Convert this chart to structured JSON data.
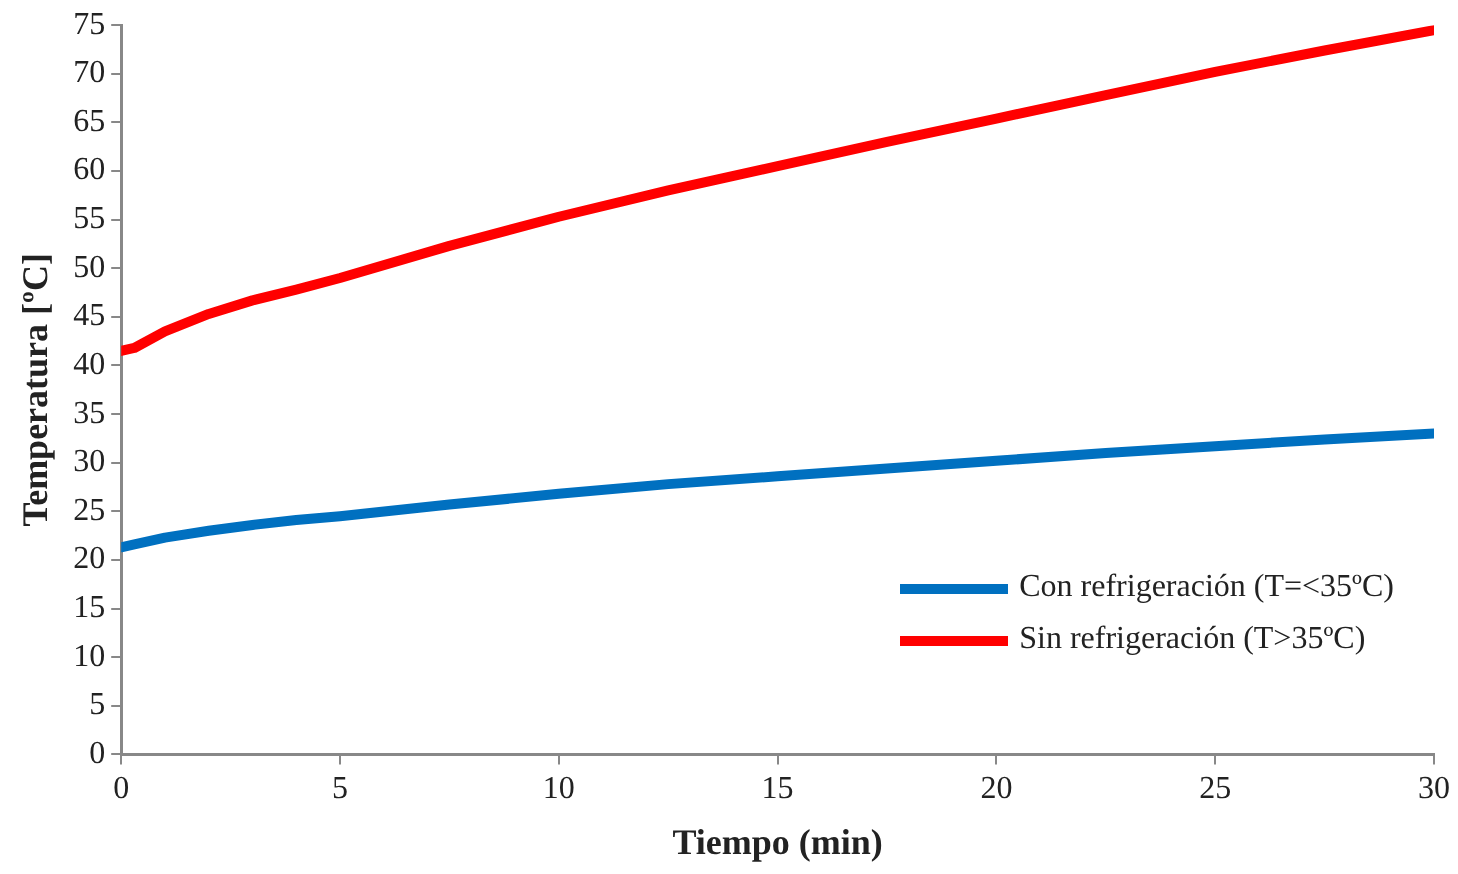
{
  "chart_data": {
    "type": "line",
    "xlabel": "Tiempo (min)",
    "ylabel": "Temperatura [ºC]",
    "x": [
      0,
      0.3,
      1,
      2,
      3,
      4,
      5,
      7.5,
      10,
      12.5,
      15,
      17.5,
      20,
      22.5,
      25,
      27.5,
      30
    ],
    "series": [
      {
        "name": "Con refrigeración (T=<35ºC)",
        "color": "#0070c0",
        "values": [
          21.3,
          21.6,
          22.3,
          23,
          23.6,
          24.1,
          24.5,
          25.7,
          26.8,
          27.8,
          28.6,
          29.4,
          30.2,
          31,
          31.7,
          32.4,
          33
        ]
      },
      {
        "name": "Sin refrigeración (T>35ºC)",
        "color": "#ff0000",
        "values": [
          41.5,
          41.8,
          43.5,
          45.3,
          46.7,
          47.8,
          49,
          52.3,
          55.3,
          58,
          60.5,
          63,
          65.4,
          67.8,
          70.2,
          72.4,
          74.5
        ]
      }
    ],
    "xlim": [
      0,
      30
    ],
    "xticks": [
      0,
      5,
      10,
      15,
      20,
      25,
      30
    ],
    "ylim": [
      0,
      75
    ],
    "yticks": [
      0,
      5,
      10,
      15,
      20,
      25,
      30,
      35,
      40,
      45,
      50,
      55,
      60,
      65,
      70,
      75
    ],
    "grid": false,
    "legend": "bottom right",
    "marker": "none",
    "line_style": "solid"
  }
}
